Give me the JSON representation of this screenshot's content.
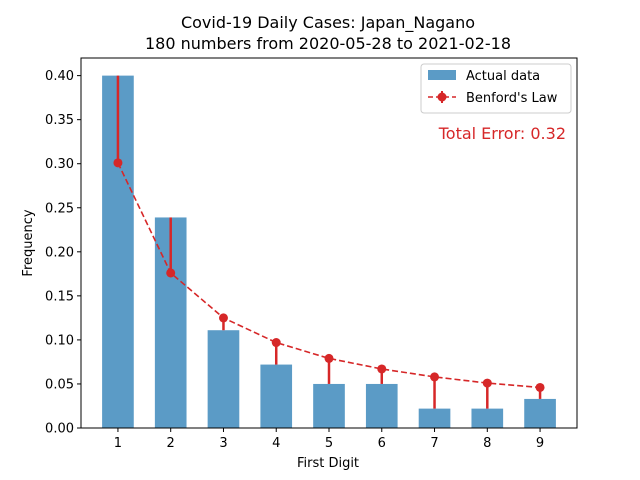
{
  "chart_data": {
    "type": "bar",
    "title": "Covid-19 Daily Cases: Japan_Nagano",
    "subtitle": "180 numbers from 2020-05-28 to 2021-02-18",
    "xlabel": "First Digit",
    "ylabel": "Frequency",
    "categories": [
      "1",
      "2",
      "3",
      "4",
      "5",
      "6",
      "7",
      "8",
      "9"
    ],
    "ylim": [
      0,
      0.42
    ],
    "yticks": [
      0.0,
      0.05,
      0.1,
      0.15,
      0.2,
      0.25,
      0.3,
      0.35,
      0.4
    ],
    "ytick_labels": [
      "0.00",
      "0.05",
      "0.10",
      "0.15",
      "0.20",
      "0.25",
      "0.30",
      "0.35",
      "0.40"
    ],
    "grid": false,
    "legend_position": "top-right",
    "series": [
      {
        "name": "Actual data",
        "kind": "bar",
        "color": "#5b9bc6",
        "values": [
          0.4,
          0.239,
          0.111,
          0.072,
          0.05,
          0.05,
          0.022,
          0.022,
          0.033
        ]
      },
      {
        "name": "Benford's Law",
        "kind": "line",
        "color": "#d62728",
        "values": [
          0.301,
          0.176,
          0.125,
          0.097,
          0.079,
          0.067,
          0.058,
          0.051,
          0.046
        ]
      }
    ],
    "annotation": {
      "text": "Total Error: 0.32",
      "color": "#d62728"
    }
  }
}
